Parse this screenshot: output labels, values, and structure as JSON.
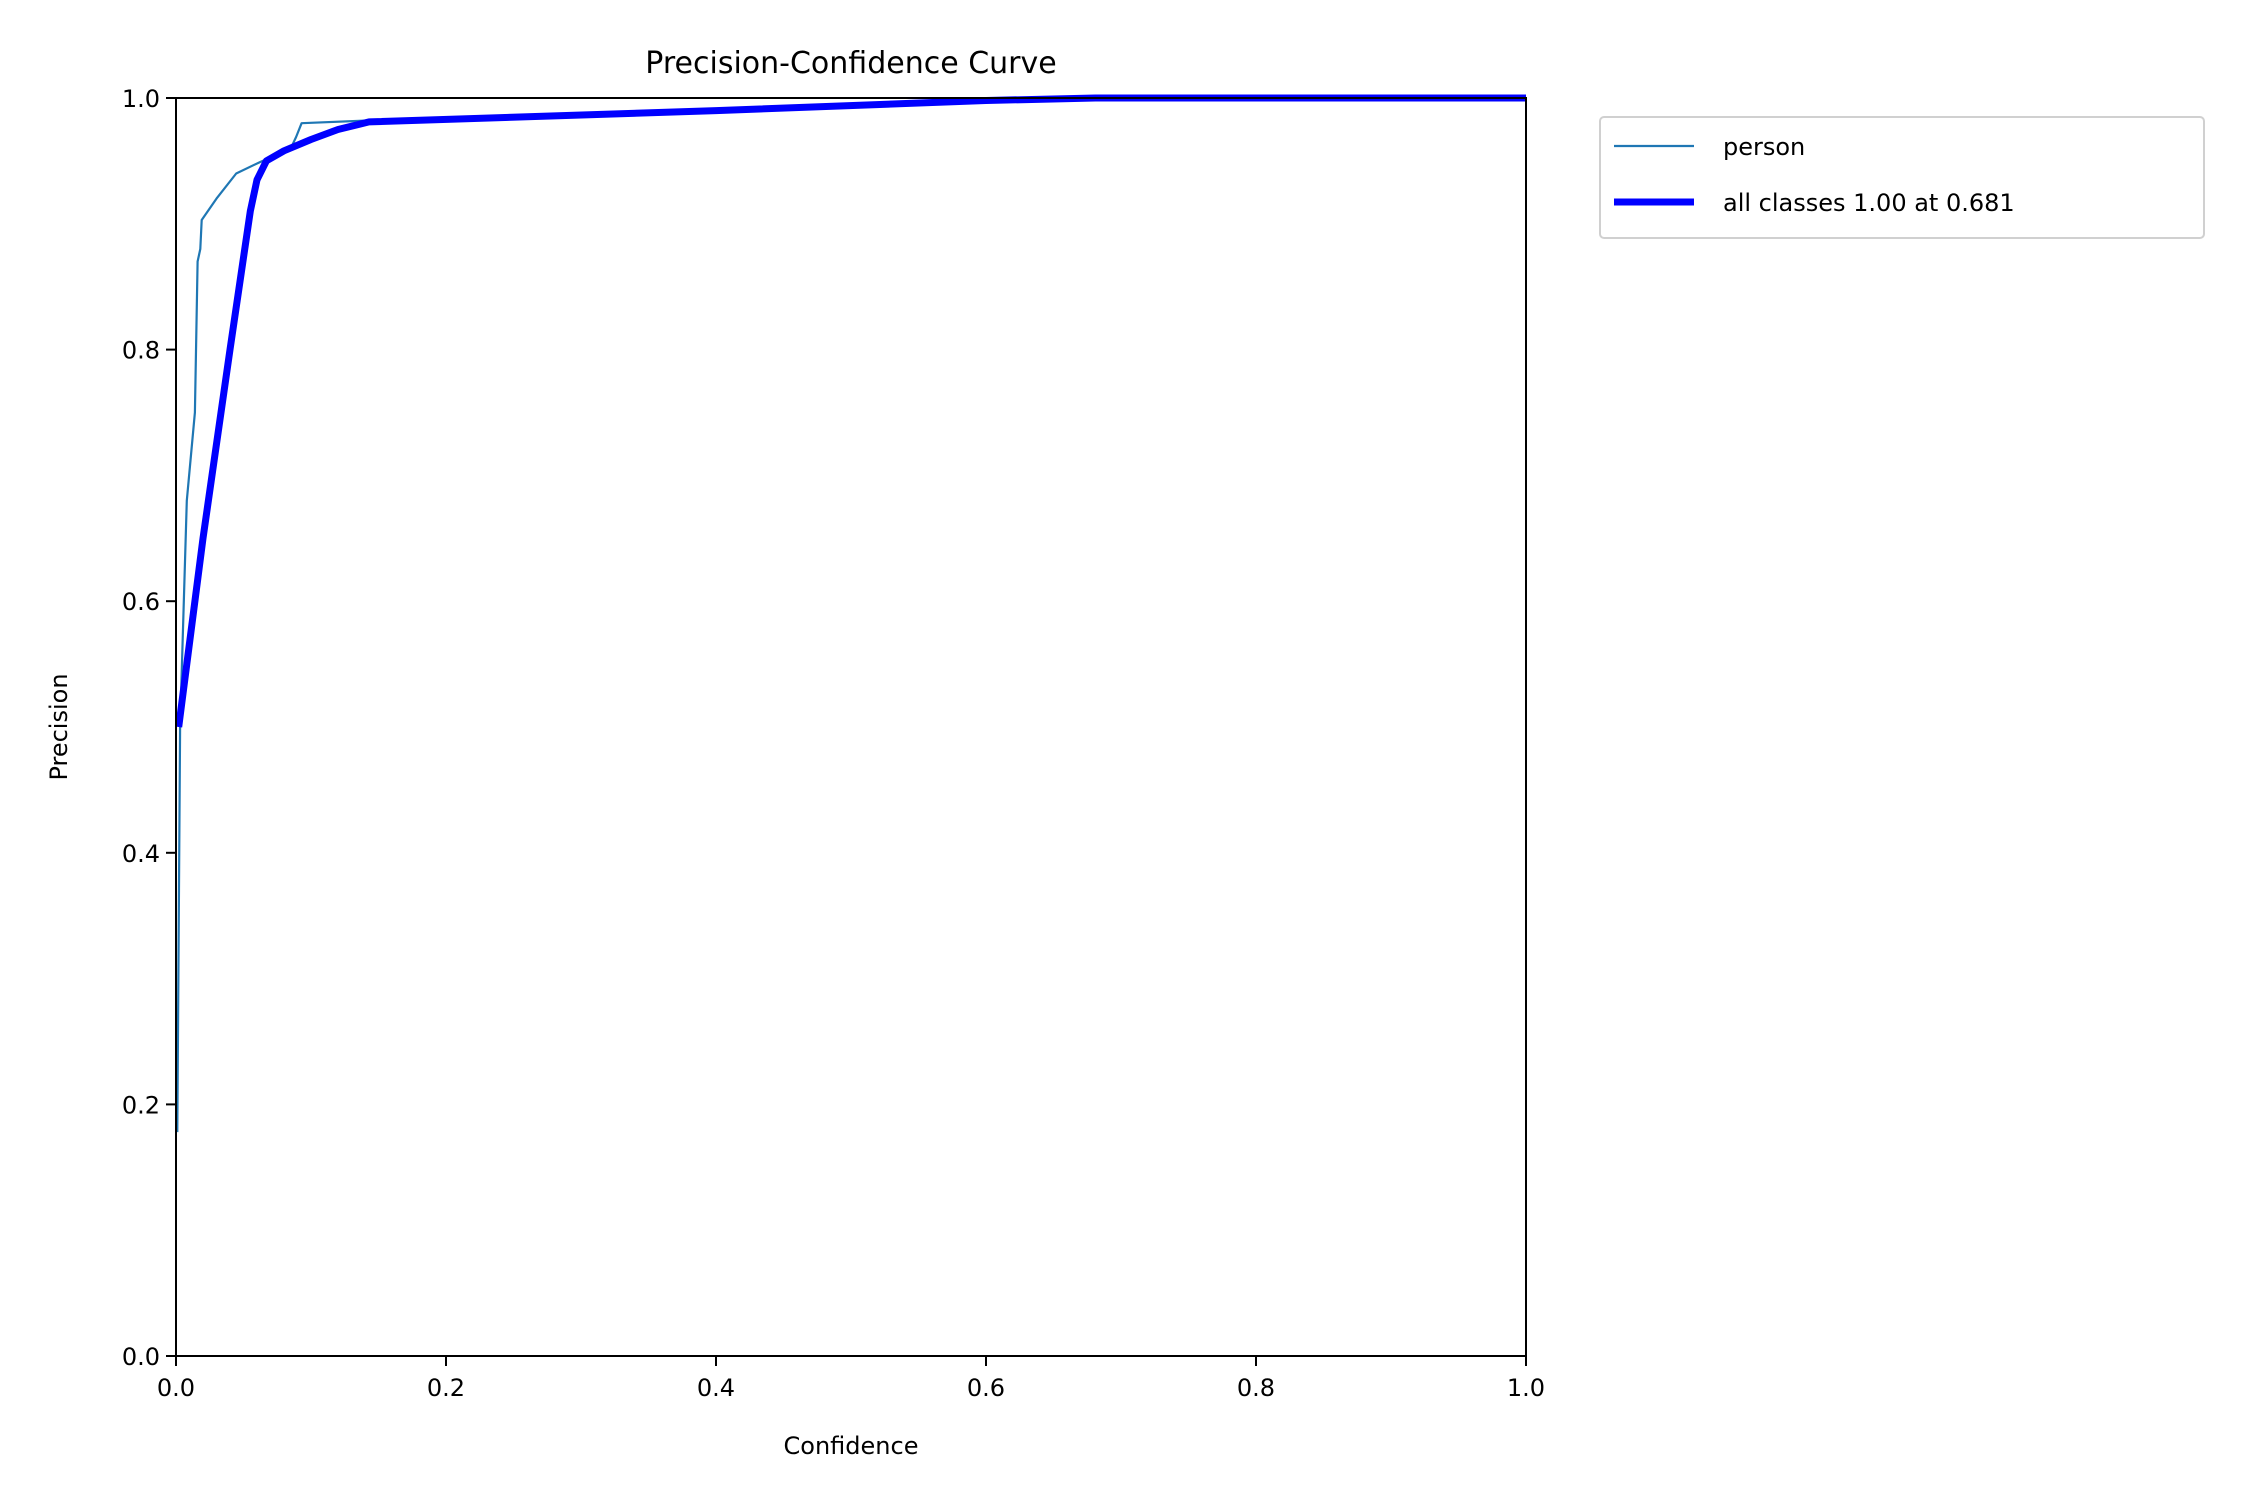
{
  "chart_data": {
    "type": "line",
    "title": "Precision-Confidence Curve",
    "xlabel": "Confidence",
    "ylabel": "Precision",
    "xlim": [
      0,
      1
    ],
    "ylim": [
      0,
      1
    ],
    "xticks": [
      "0.0",
      "0.2",
      "0.4",
      "0.6",
      "0.8",
      "1.0"
    ],
    "yticks": [
      "0.0",
      "0.2",
      "0.4",
      "0.6",
      "0.8",
      "1.0"
    ],
    "grid": false,
    "legend_placement": "outside-top-right",
    "series": [
      {
        "name": "person",
        "color": "#1f77b4",
        "x": [
          0.001,
          0.003,
          0.008,
          0.014,
          0.016,
          0.018,
          0.019,
          0.03,
          0.0446,
          0.062,
          0.085,
          0.089,
          0.093,
          0.14,
          0.3,
          0.5,
          0.65,
          1.0
        ],
        "y": [
          0.178,
          0.5,
          0.68,
          0.75,
          0.87,
          0.88,
          0.903,
          0.92,
          0.94,
          0.949,
          0.96,
          0.969,
          0.98,
          0.982,
          0.987,
          0.993,
          1.0,
          1.0
        ]
      },
      {
        "name": "all classes 1.00 at 0.681",
        "color": "#0000ff",
        "x": [
          0.002,
          0.02,
          0.04,
          0.055,
          0.06,
          0.067,
          0.08,
          0.1,
          0.12,
          0.143,
          0.4,
          0.6,
          0.681,
          1.0
        ],
        "y": [
          0.5,
          0.65,
          0.8,
          0.91,
          0.935,
          0.95,
          0.958,
          0.967,
          0.975,
          0.981,
          0.99,
          0.998,
          1.0,
          1.0
        ]
      }
    ]
  }
}
